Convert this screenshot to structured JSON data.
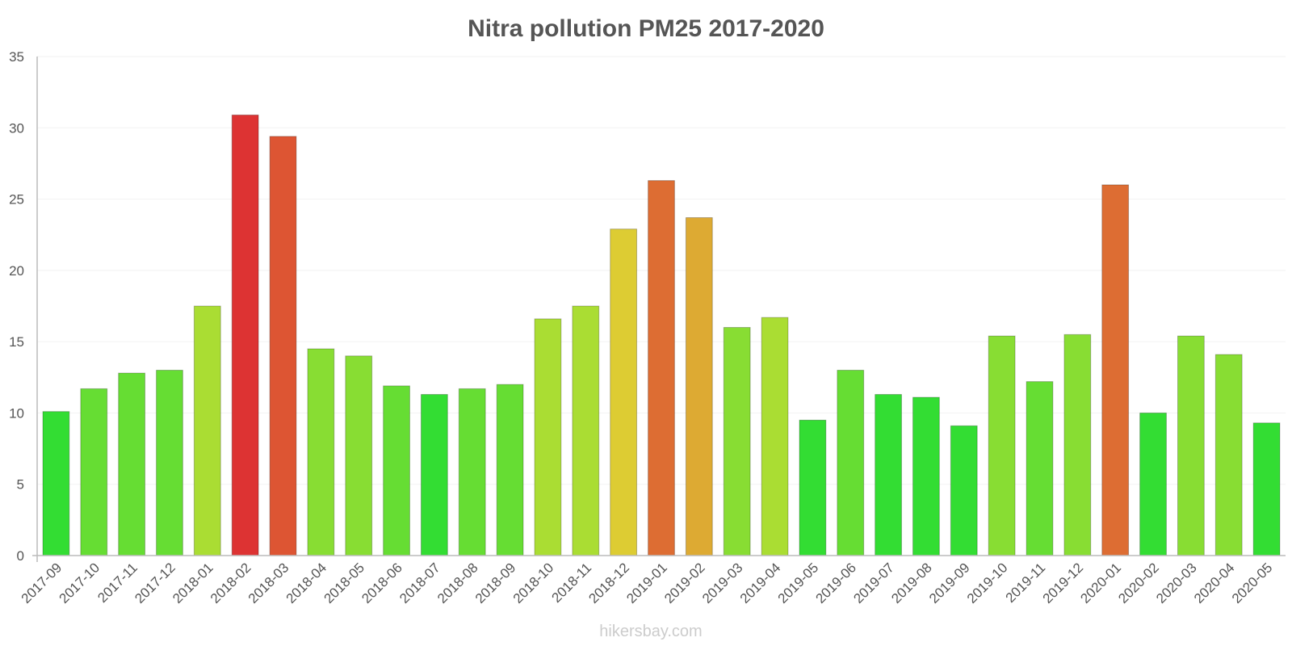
{
  "chart_data": {
    "type": "bar",
    "title": "Nitra pollution PM25 2017-2020",
    "xlabel": "",
    "ylabel": "",
    "ylim": [
      0,
      35
    ],
    "yticks": [
      0,
      5,
      10,
      15,
      20,
      25,
      30,
      35
    ],
    "grid": true,
    "categories": [
      "2017-09",
      "2017-10",
      "2017-11",
      "2017-12",
      "2018-01",
      "2018-02",
      "2018-03",
      "2018-04",
      "2018-05",
      "2018-06",
      "2018-07",
      "2018-08",
      "2018-09",
      "2018-10",
      "2018-11",
      "2018-12",
      "2019-01",
      "2019-02",
      "2019-03",
      "2019-04",
      "2019-05",
      "2019-06",
      "2019-07",
      "2019-08",
      "2019-09",
      "2019-10",
      "2019-11",
      "2019-12",
      "2020-01",
      "2020-02",
      "2020-03",
      "2020-04",
      "2020-05"
    ],
    "values": [
      10.1,
      11.7,
      12.8,
      13.0,
      17.5,
      30.9,
      29.4,
      14.5,
      14.0,
      11.9,
      11.3,
      11.7,
      12.0,
      16.6,
      17.5,
      22.9,
      26.3,
      23.7,
      16.0,
      16.7,
      9.5,
      13.0,
      11.3,
      11.1,
      9.1,
      15.4,
      12.2,
      15.5,
      26.0,
      10.0,
      15.4,
      14.1,
      9.3
    ],
    "colors": [
      "#33dd33",
      "#66dd33",
      "#66dd33",
      "#66dd33",
      "#aadd33",
      "#dd3333",
      "#dd5533",
      "#88dd33",
      "#88dd33",
      "#66dd33",
      "#33dd33",
      "#66dd33",
      "#66dd33",
      "#aadd33",
      "#aadd33",
      "#ddcc33",
      "#dd6d33",
      "#ddaa33",
      "#88dd33",
      "#aadd33",
      "#33dd33",
      "#66dd33",
      "#33dd33",
      "#33dd33",
      "#33dd33",
      "#88dd33",
      "#66dd33",
      "#88dd33",
      "#dd6d33",
      "#33dd33",
      "#88dd33",
      "#88dd33",
      "#33dd33"
    ]
  },
  "watermark": "hikersbay.com"
}
